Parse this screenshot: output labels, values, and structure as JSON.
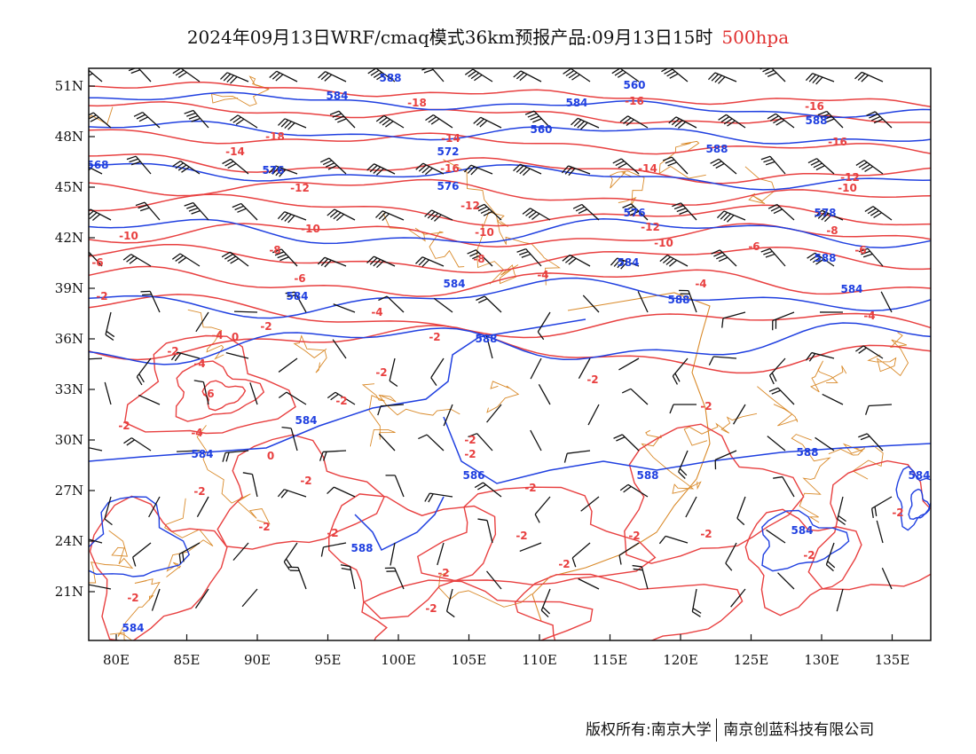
{
  "header": {
    "title": "2024年09月13日WRF/cmaq模式36km预报产品:09月13日15时",
    "level": "500hpa"
  },
  "map": {
    "lat_labels": [
      "51N",
      "48N",
      "45N",
      "42N",
      "39N",
      "36N",
      "33N",
      "30N",
      "27N",
      "24N",
      "21N"
    ],
    "lon_labels": [
      "80E",
      "85E",
      "90E",
      "95E",
      "100E",
      "105E",
      "110E",
      "115E",
      "120E",
      "125E",
      "130E",
      "135E"
    ],
    "colors": {
      "height": "#2040e0",
      "temperature": "#e84040",
      "coast": "#d98a2a",
      "barb": "#111111"
    },
    "height_labels": [
      "584",
      "588",
      "560",
      "584",
      "588",
      "560",
      "588",
      "568",
      "576",
      "572",
      "576",
      "576",
      "578",
      "584",
      "584",
      "584",
      "588",
      "588",
      "584",
      "588",
      "584",
      "584",
      "588",
      "586",
      "588",
      "584",
      "588",
      "584",
      "584"
    ],
    "temp_labels": [
      "-18",
      "-16",
      "-16",
      "-18",
      "-14",
      "-16",
      "-14",
      "-16",
      "-14",
      "-12",
      "-12",
      "-12",
      "-10",
      "-10",
      "-10",
      "-10",
      "-12",
      "-8",
      "-8",
      "-10",
      "-6",
      "-8",
      "-6",
      "-6",
      "-6",
      "-4",
      "-4",
      "-4",
      "-4",
      "-2",
      "-2",
      "-2",
      "-4",
      "0",
      "-2",
      "-2",
      "-2",
      "0",
      "-2",
      "-6",
      "-4",
      "-2",
      "-2",
      "-2",
      "-2",
      "-2",
      "-2",
      "-2",
      "-2",
      "-2",
      "-2",
      "-2",
      "-2",
      "-2",
      "-2",
      "-2",
      "-2",
      "-4",
      "-2",
      "-2"
    ]
  },
  "footer": {
    "copyright": "版权所有:南京大学",
    "company": "南京创蓝科技有限公司"
  }
}
